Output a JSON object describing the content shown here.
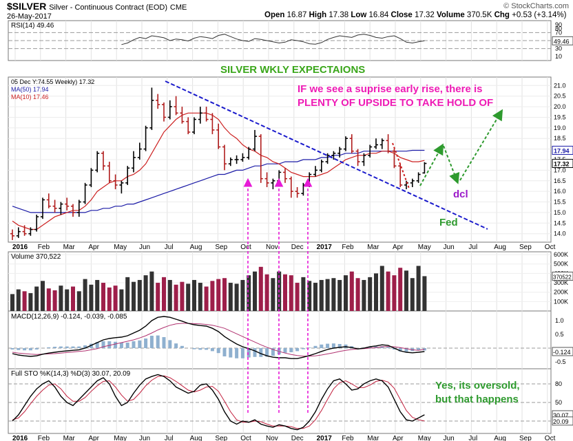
{
  "header": {
    "symbol": "$SILVER",
    "name": "Silver - Continuous Contract (EOD)",
    "exchange": "CME",
    "date": "26-May-2017",
    "open_label": "Open",
    "open": "16.87",
    "high_label": "High",
    "high": "17.38",
    "low_label": "Low",
    "low": "16.84",
    "close_label": "Close",
    "close": "17.32",
    "volume_label": "Volume",
    "volume": "370.5K",
    "chg_label": "Chg",
    "chg": "+0.53 (+3.14%)",
    "brand": "© StockCharts.com"
  },
  "chart_data": [
    {
      "type": "line",
      "panel": "rsi",
      "title": "RSI(14) 49.46",
      "ylim": [
        0,
        100
      ],
      "yticks": [
        "90",
        "80",
        "70",
        "50",
        "30",
        "10"
      ],
      "last_value_label": "49.46",
      "reference_lines": [
        70,
        50,
        30
      ],
      "values": [
        40,
        44,
        52,
        58,
        55,
        62,
        60,
        57,
        50,
        54,
        52,
        49,
        56,
        60,
        58,
        55,
        63,
        66,
        60,
        54,
        50,
        48,
        55,
        53,
        50,
        47,
        44,
        46,
        52,
        50,
        47,
        42,
        41,
        45,
        53,
        58,
        62,
        60,
        58,
        64,
        66,
        63,
        58,
        56,
        60,
        62,
        55,
        46,
        44,
        47,
        49.46
      ]
    },
    {
      "type": "bar",
      "panel": "price",
      "legend": [
        {
          "label": "05 Dec Y:74.55 Weekly) 17.32",
          "color": "#000000"
        },
        {
          "label": "MA(50) 17.94",
          "color": "#1a1aa6"
        },
        {
          "label": "MA(10) 17.46",
          "color": "#cc1f1f"
        }
      ],
      "ylim": [
        13.6,
        21.4
      ],
      "yticks": [
        "21.0",
        "20.5",
        "20.0",
        "19.5",
        "19.0",
        "18.5",
        "18.0",
        "17.5",
        "17.0",
        "16.5",
        "16.0",
        "15.5",
        "15.0",
        "14.5",
        "14.0"
      ],
      "x_months": [
        "2016",
        "Feb",
        "Mar",
        "Apr",
        "May",
        "Jun",
        "Jul",
        "Aug",
        "Sep",
        "Oct",
        "Nov",
        "Dec",
        "2017",
        "Feb",
        "Mar",
        "Apr",
        "May",
        "Jun",
        "Jul",
        "Aug",
        "Sep",
        "Oct"
      ],
      "close_label": "17.32",
      "ma50_label": "17.94",
      "ma10_label": "17.46",
      "ohlc": [
        [
          14.0,
          14.2,
          13.7,
          13.9
        ],
        [
          13.9,
          14.3,
          13.8,
          14.1
        ],
        [
          14.1,
          14.4,
          13.9,
          14.0
        ],
        [
          14.0,
          14.3,
          13.9,
          14.2
        ],
        [
          14.2,
          14.9,
          14.1,
          14.8
        ],
        [
          14.8,
          15.7,
          14.7,
          15.6
        ],
        [
          15.6,
          15.9,
          15.2,
          15.3
        ],
        [
          15.3,
          15.6,
          15.0,
          15.2
        ],
        [
          15.2,
          15.5,
          14.9,
          15.4
        ],
        [
          15.4,
          15.7,
          15.1,
          15.3
        ],
        [
          15.3,
          15.4,
          14.8,
          15.0
        ],
        [
          15.0,
          15.6,
          14.8,
          15.5
        ],
        [
          15.5,
          16.4,
          15.4,
          16.3
        ],
        [
          16.3,
          17.1,
          16.2,
          17.0
        ],
        [
          17.0,
          17.9,
          16.9,
          17.8
        ],
        [
          17.8,
          17.9,
          17.0,
          17.2
        ],
        [
          17.2,
          17.4,
          16.4,
          16.5
        ],
        [
          16.5,
          16.8,
          16.1,
          16.3
        ],
        [
          16.3,
          16.5,
          15.9,
          16.4
        ],
        [
          16.4,
          17.2,
          16.3,
          17.1
        ],
        [
          17.1,
          17.9,
          16.9,
          17.6
        ],
        [
          17.6,
          18.3,
          17.5,
          18.0
        ],
        [
          18.0,
          19.1,
          17.9,
          19.0
        ],
        [
          19.0,
          20.9,
          18.9,
          20.3
        ],
        [
          20.3,
          20.6,
          19.9,
          20.1
        ],
        [
          20.1,
          20.2,
          19.3,
          19.5
        ],
        [
          19.5,
          20.3,
          19.4,
          20.0
        ],
        [
          20.0,
          20.5,
          19.6,
          19.7
        ],
        [
          19.7,
          20.0,
          19.2,
          19.3
        ],
        [
          19.3,
          19.5,
          18.7,
          18.8
        ],
        [
          18.8,
          19.5,
          18.7,
          19.4
        ],
        [
          19.4,
          20.0,
          19.2,
          19.7
        ],
        [
          19.7,
          20.0,
          19.3,
          19.4
        ],
        [
          19.4,
          19.7,
          18.7,
          18.9
        ],
        [
          18.9,
          19.2,
          18.0,
          18.1
        ],
        [
          18.1,
          18.2,
          17.0,
          17.3
        ],
        [
          17.3,
          17.6,
          17.2,
          17.5
        ],
        [
          17.5,
          17.7,
          17.3,
          17.5
        ],
        [
          17.5,
          17.8,
          17.4,
          17.6
        ],
        [
          17.6,
          18.1,
          17.5,
          18.0
        ],
        [
          18.0,
          18.9,
          17.9,
          18.6
        ],
        [
          18.6,
          18.7,
          16.4,
          16.6
        ],
        [
          16.6,
          16.9,
          16.2,
          16.4
        ],
        [
          16.4,
          16.6,
          16.1,
          16.5
        ],
        [
          16.5,
          17.0,
          16.4,
          16.9
        ],
        [
          16.9,
          17.1,
          16.4,
          16.6
        ],
        [
          16.6,
          16.7,
          15.7,
          16.0
        ],
        [
          16.0,
          16.2,
          15.7,
          15.9
        ],
        [
          15.9,
          16.4,
          15.8,
          16.3
        ],
        [
          16.3,
          16.9,
          16.2,
          16.8
        ],
        [
          16.8,
          17.2,
          16.7,
          17.0
        ],
        [
          17.0,
          17.5,
          16.9,
          17.4
        ],
        [
          17.4,
          17.8,
          17.3,
          17.7
        ],
        [
          17.7,
          17.9,
          17.5,
          17.8
        ],
        [
          17.8,
          18.1,
          17.6,
          18.0
        ],
        [
          18.0,
          18.6,
          17.9,
          18.5
        ],
        [
          18.5,
          18.7,
          17.8,
          17.9
        ],
        [
          17.9,
          18.0,
          17.2,
          17.4
        ],
        [
          17.4,
          17.8,
          17.2,
          17.7
        ],
        [
          17.7,
          18.2,
          17.6,
          18.1
        ],
        [
          18.1,
          18.5,
          18.0,
          18.2
        ],
        [
          18.2,
          18.5,
          18.0,
          18.4
        ],
        [
          18.4,
          18.7,
          17.8,
          17.9
        ],
        [
          17.9,
          18.0,
          17.1,
          17.2
        ],
        [
          17.2,
          17.3,
          16.2,
          16.3
        ],
        [
          16.3,
          16.5,
          16.1,
          16.4
        ],
        [
          16.4,
          16.6,
          16.2,
          16.5
        ],
        [
          16.5,
          16.9,
          16.4,
          16.8
        ],
        [
          16.87,
          17.38,
          16.84,
          17.32
        ]
      ],
      "ma10": [
        14.6,
        14.4,
        14.3,
        14.2,
        14.2,
        14.4,
        14.6,
        14.8,
        14.9,
        15.0,
        15.1,
        15.1,
        15.3,
        15.6,
        16.0,
        16.2,
        16.4,
        16.5,
        16.5,
        16.7,
        16.8,
        17.0,
        17.3,
        17.8,
        18.3,
        18.8,
        19.1,
        19.4,
        19.6,
        19.7,
        19.7,
        19.7,
        19.7,
        19.6,
        19.4,
        19.0,
        18.7,
        18.5,
        18.2,
        18.0,
        17.9,
        17.7,
        17.6,
        17.4,
        17.3,
        17.1,
        16.9,
        16.8,
        16.7,
        16.7,
        16.7,
        16.8,
        16.9,
        17.1,
        17.3,
        17.5,
        17.6,
        17.7,
        17.7,
        17.8,
        17.8,
        17.9,
        17.9,
        17.8,
        17.6,
        17.5,
        17.4,
        17.4,
        17.46
      ],
      "ma50": [
        15.3,
        15.2,
        15.1,
        15.0,
        15.0,
        15.0,
        15.0,
        15.0,
        15.0,
        15.0,
        15.0,
        15.0,
        15.0,
        15.1,
        15.1,
        15.2,
        15.2,
        15.3,
        15.3,
        15.4,
        15.4,
        15.5,
        15.6,
        15.7,
        15.8,
        15.9,
        16.0,
        16.1,
        16.2,
        16.3,
        16.4,
        16.5,
        16.6,
        16.7,
        16.8,
        16.8,
        16.9,
        17.0,
        17.0,
        17.1,
        17.2,
        17.2,
        17.3,
        17.3,
        17.3,
        17.4,
        17.4,
        17.4,
        17.5,
        17.5,
        17.5,
        17.6,
        17.6,
        17.7,
        17.7,
        17.8,
        17.8,
        17.8,
        17.9,
        17.9,
        17.9,
        17.9,
        17.9,
        17.9,
        17.9,
        17.9,
        17.94,
        17.94,
        17.94
      ]
    },
    {
      "type": "bar",
      "panel": "volume",
      "title": "Volume 370,522",
      "yticks": [
        "600K",
        "500K",
        "400K",
        "300K",
        "200K",
        "100K"
      ],
      "last_value_label": "370522",
      "ylim": [
        0,
        630000
      ],
      "values": [
        180,
        230,
        210,
        190,
        260,
        320,
        240,
        220,
        270,
        230,
        260,
        210,
        340,
        280,
        330,
        300,
        250,
        270,
        230,
        360,
        310,
        330,
        380,
        420,
        300,
        360,
        330,
        280,
        310,
        290,
        330,
        300,
        260,
        320,
        340,
        350,
        300,
        290,
        330,
        380,
        420,
        470,
        390,
        350,
        420,
        390,
        380,
        300,
        360,
        320,
        300,
        330,
        340,
        350,
        330,
        380,
        420,
        350,
        330,
        360,
        400,
        480,
        420,
        380,
        460,
        430,
        350,
        480,
        370.5
      ],
      "red_days": [
        2,
        6,
        7,
        10,
        15,
        16,
        17,
        24,
        25,
        27,
        28,
        32,
        33,
        34,
        35,
        41,
        42,
        45,
        46,
        47,
        56,
        57,
        62,
        63,
        64
      ]
    },
    {
      "type": "line",
      "panel": "macd",
      "title": "MACD(12,26,9) -0.124, -0.039, -0.085",
      "yticks": [
        "1.0",
        "0.5",
        "-0.5"
      ],
      "last_value_label": "-0.124",
      "ylim": [
        -0.75,
        1.35
      ],
      "macd": [
        -0.2,
        -0.25,
        -0.28,
        -0.3,
        -0.28,
        -0.22,
        -0.18,
        -0.15,
        -0.12,
        -0.1,
        -0.08,
        -0.06,
        0.0,
        0.1,
        0.2,
        0.3,
        0.35,
        0.38,
        0.4,
        0.45,
        0.55,
        0.65,
        0.8,
        1.0,
        1.12,
        1.15,
        1.12,
        1.05,
        0.98,
        0.9,
        0.85,
        0.82,
        0.8,
        0.72,
        0.6,
        0.42,
        0.28,
        0.15,
        0.05,
        -0.02,
        -0.1,
        -0.2,
        -0.28,
        -0.33,
        -0.35,
        -0.35,
        -0.38,
        -0.38,
        -0.33,
        -0.27,
        -0.2,
        -0.12,
        -0.05,
        0.0,
        0.03,
        0.05,
        0.02,
        -0.03,
        0.0,
        0.05,
        0.08,
        0.12,
        0.1,
        0.0,
        -0.1,
        -0.15,
        -0.17,
        -0.15,
        -0.124
      ],
      "signal": [
        -0.15,
        -0.18,
        -0.2,
        -0.22,
        -0.23,
        -0.22,
        -0.21,
        -0.2,
        -0.18,
        -0.16,
        -0.14,
        -0.12,
        -0.1,
        -0.06,
        -0.02,
        0.05,
        0.1,
        0.15,
        0.2,
        0.25,
        0.3,
        0.37,
        0.45,
        0.55,
        0.66,
        0.75,
        0.83,
        0.88,
        0.9,
        0.9,
        0.89,
        0.88,
        0.86,
        0.83,
        0.78,
        0.72,
        0.62,
        0.52,
        0.42,
        0.32,
        0.22,
        0.12,
        0.03,
        -0.05,
        -0.12,
        -0.18,
        -0.23,
        -0.27,
        -0.29,
        -0.29,
        -0.28,
        -0.25,
        -0.21,
        -0.17,
        -0.12,
        -0.08,
        -0.05,
        -0.03,
        -0.02,
        0.0,
        0.02,
        0.05,
        0.06,
        0.05,
        0.02,
        -0.02,
        -0.06,
        -0.08,
        -0.039
      ]
    },
    {
      "type": "line",
      "panel": "sto",
      "title": "Full STO %K(14,3) %D(3) 30.07, 20.09",
      "yticks": [
        "80",
        "50",
        "20"
      ],
      "last_value_labels": [
        "30.07",
        "20.09"
      ],
      "ylim": [
        0,
        100
      ],
      "k": [
        20,
        30,
        45,
        60,
        72,
        80,
        85,
        75,
        60,
        50,
        45,
        55,
        65,
        75,
        85,
        90,
        80,
        60,
        45,
        50,
        65,
        78,
        88,
        92,
        95,
        92,
        85,
        75,
        70,
        65,
        68,
        78,
        80,
        70,
        55,
        35,
        20,
        15,
        20,
        18,
        22,
        15,
        12,
        10,
        14,
        12,
        8,
        6,
        10,
        20,
        35,
        55,
        72,
        85,
        88,
        80,
        70,
        72,
        80,
        85,
        88,
        85,
        75,
        55,
        35,
        22,
        20,
        25,
        30.07
      ],
      "d": [
        22,
        25,
        35,
        48,
        60,
        70,
        78,
        80,
        72,
        60,
        52,
        52,
        58,
        68,
        77,
        84,
        85,
        75,
        62,
        52,
        55,
        65,
        77,
        86,
        92,
        93,
        90,
        84,
        77,
        70,
        67,
        70,
        75,
        76,
        68,
        52,
        35,
        22,
        18,
        18,
        20,
        19,
        15,
        12,
        12,
        12,
        11,
        8,
        8,
        12,
        22,
        37,
        55,
        72,
        82,
        85,
        80,
        74,
        74,
        78,
        84,
        86,
        83,
        73,
        55,
        37,
        26,
        22,
        20.09
      ]
    }
  ],
  "annotations": {
    "title": "SILVER WKLY EXPECTAIONS",
    "note_line1": "IF we see a suprise early rise, there is",
    "note_line2": "PLENTY OF UPSIDE TO TAKE HOLD OF",
    "dcl": "dcl",
    "fed": "Fed",
    "sto_note_line1": "Yes, its oversold,",
    "sto_note_line2": "but that happens"
  },
  "colors": {
    "up_bar": "#000000",
    "down_bar": "#b01c1c",
    "ma50": "#1a1aa6",
    "ma10": "#cc1f1f",
    "trendline": "#1a1acc",
    "arrows_magenta": "#e619d6",
    "projection_green": "#2e9a2e",
    "title_green": "#3aa61a",
    "note_magenta": "#ee1bb5",
    "dcl_purple": "#9b19c9",
    "vol_up": "#333333",
    "vol_down": "#9e1f4a",
    "macd_hist": "#8fb0cf"
  }
}
